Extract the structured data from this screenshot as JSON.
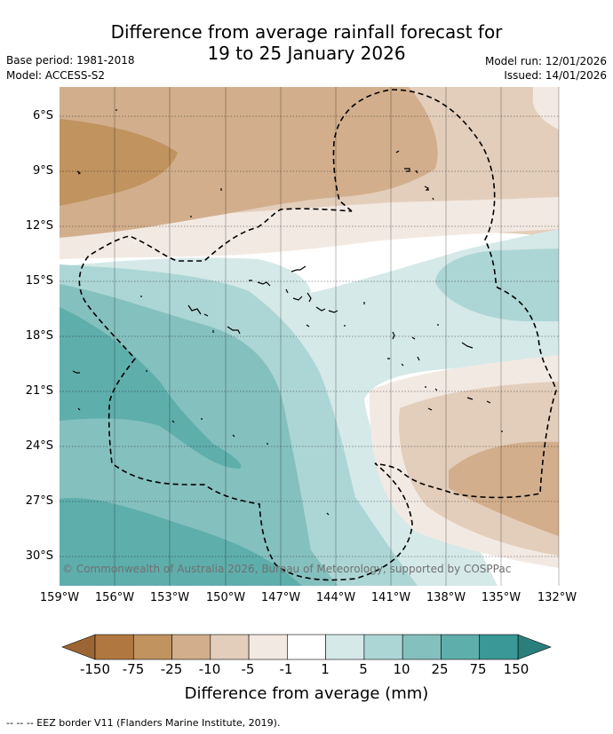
{
  "title": {
    "line1": "Difference from average rainfall forecast for",
    "line2": "19 to 25 January 2026"
  },
  "meta": {
    "base_period": "Base period: 1981-2018",
    "model": "Model: ACCESS-S2",
    "model_run": "Model run: 12/01/2026",
    "issued": "Issued: 14/01/2026"
  },
  "map": {
    "lat_labels": [
      "6°S",
      "9°S",
      "12°S",
      "15°S",
      "18°S",
      "21°S",
      "24°S",
      "27°S",
      "30°S"
    ],
    "lon_labels": [
      "159°W",
      "156°W",
      "153°W",
      "150°W",
      "147°W",
      "144°W",
      "141°W",
      "138°W",
      "135°W",
      "132°W"
    ],
    "credit": "© Commonwealth of Australia 2026, Bureau of Meteorology, supported by COSPPac"
  },
  "colorbar": {
    "ticks": [
      "-150",
      "-75",
      "-25",
      "-10",
      "-5",
      "-1",
      "1",
      "5",
      "10",
      "25",
      "75",
      "150"
    ],
    "colors": [
      "#b07840",
      "#c0935f",
      "#d2ae8c",
      "#e3cebb",
      "#f3e9e3",
      "#ffffff",
      "#d5e9e8",
      "#acd6d5",
      "#84c0be",
      "#5eaeac",
      "#3a9896"
    ],
    "end_low_color": "#9b6633",
    "end_high_color": "#2a7e7c",
    "label": "Difference from average (mm)"
  },
  "footer": "-- -- -- EEZ border V11 (Flanders Marine Institute, 2019)."
}
